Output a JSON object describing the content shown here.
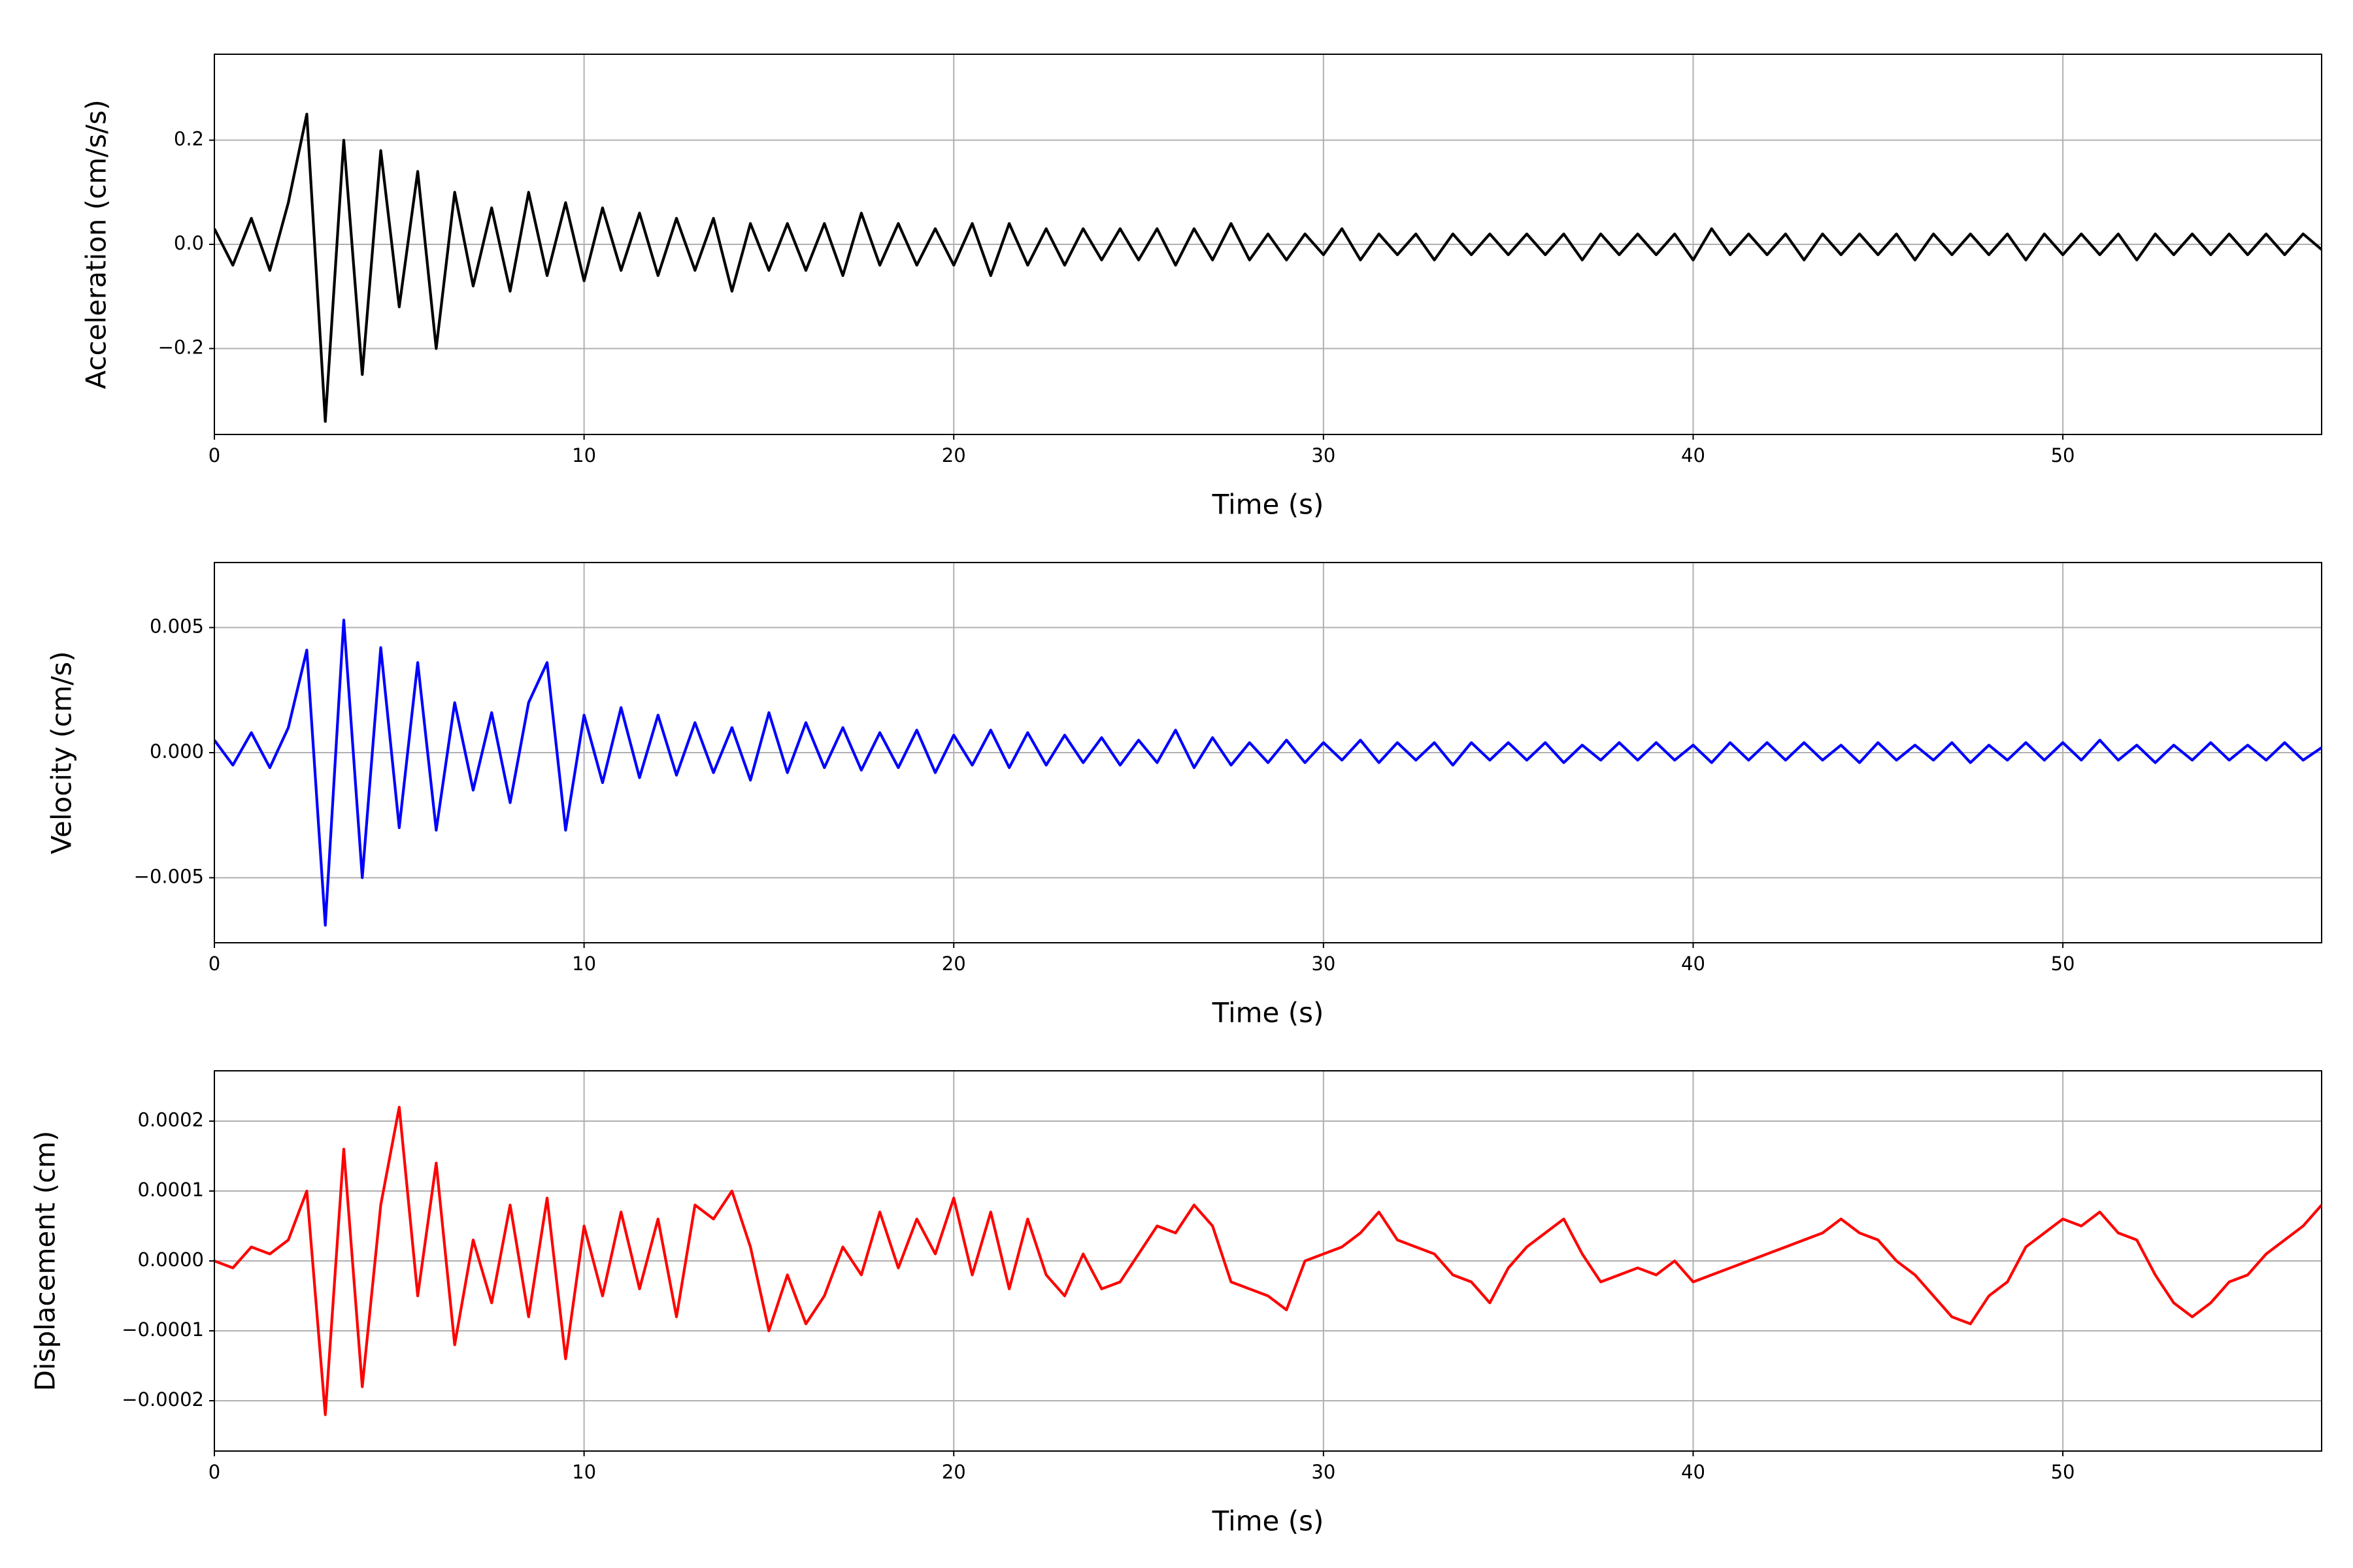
{
  "chart_data": [
    {
      "type": "line",
      "xlabel": "Time (s)",
      "ylabel": "Acceleration (cm/s/s)",
      "color": "#000000",
      "grid": true,
      "xlim": [
        0,
        57
      ],
      "xticks": [
        0,
        10,
        20,
        30,
        40,
        50
      ],
      "ylim": [
        -0.365,
        0.365
      ],
      "yticks": [
        {
          "value": -0.2,
          "label": "−0.2"
        },
        {
          "value": 0,
          "label": "0.0"
        },
        {
          "value": 0.2,
          "label": "0.2"
        }
      ],
      "x": [
        0,
        0.5,
        1,
        1.5,
        2,
        2.5,
        3,
        3.5,
        4,
        4.5,
        5,
        5.5,
        6,
        6.5,
        7,
        7.5,
        8,
        8.5,
        9,
        9.5,
        10,
        10.5,
        11,
        11.5,
        12,
        12.5,
        13,
        13.5,
        14,
        14.5,
        15,
        15.5,
        16,
        16.5,
        17,
        17.5,
        18,
        18.5,
        19,
        19.5,
        20,
        20.5,
        21,
        21.5,
        22,
        22.5,
        23,
        23.5,
        24,
        24.5,
        25,
        25.5,
        26,
        26.5,
        27,
        27.5,
        28,
        28.5,
        29,
        29.5,
        30,
        30.5,
        31,
        31.5,
        32,
        32.5,
        33,
        33.5,
        34,
        34.5,
        35,
        35.5,
        36,
        36.5,
        37,
        37.5,
        38,
        38.5,
        39,
        39.5,
        40,
        40.5,
        41,
        41.5,
        42,
        42.5,
        43,
        43.5,
        44,
        44.5,
        45,
        45.5,
        46,
        46.5,
        47,
        47.5,
        48,
        48.5,
        49,
        49.5,
        50,
        50.5,
        51,
        51.5,
        52,
        52.5,
        53,
        53.5,
        54,
        54.5,
        55,
        55.5,
        56,
        56.5,
        57
      ],
      "values": [
        0.03,
        -0.04,
        0.05,
        -0.05,
        0.08,
        0.25,
        -0.34,
        0.2,
        -0.25,
        0.18,
        -0.12,
        0.14,
        -0.2,
        0.1,
        -0.08,
        0.07,
        -0.09,
        0.1,
        -0.06,
        0.08,
        -0.07,
        0.07,
        -0.05,
        0.06,
        -0.06,
        0.05,
        -0.05,
        0.05,
        -0.09,
        0.04,
        -0.05,
        0.04,
        -0.05,
        0.04,
        -0.06,
        0.06,
        -0.04,
        0.04,
        -0.04,
        0.03,
        -0.04,
        0.04,
        -0.06,
        0.04,
        -0.04,
        0.03,
        -0.04,
        0.03,
        -0.03,
        0.03,
        -0.03,
        0.03,
        -0.04,
        0.03,
        -0.03,
        0.04,
        -0.03,
        0.02,
        -0.03,
        0.02,
        -0.02,
        0.03,
        -0.03,
        0.02,
        -0.02,
        0.02,
        -0.03,
        0.02,
        -0.02,
        0.02,
        -0.02,
        0.02,
        -0.02,
        0.02,
        -0.03,
        0.02,
        -0.02,
        0.02,
        -0.02,
        0.02,
        -0.03,
        0.03,
        -0.02,
        0.02,
        -0.02,
        0.02,
        -0.03,
        0.02,
        -0.02,
        0.02,
        -0.02,
        0.02,
        -0.03,
        0.02,
        -0.02,
        0.02,
        -0.02,
        0.02,
        -0.03,
        0.02,
        -0.02,
        0.02,
        -0.02,
        0.02,
        -0.03,
        0.02,
        -0.02,
        0.02,
        -0.02,
        0.02,
        -0.02,
        0.02,
        -0.02,
        0.02,
        -0.01
      ]
    },
    {
      "type": "line",
      "xlabel": "Time (s)",
      "ylabel": "Velocity (cm/s)",
      "color": "#0000ff",
      "grid": true,
      "xlim": [
        0,
        57
      ],
      "xticks": [
        0,
        10,
        20,
        30,
        40,
        50
      ],
      "ylim": [
        -0.0076,
        0.0076
      ],
      "yticks": [
        {
          "value": -0.005,
          "label": "−0.005"
        },
        {
          "value": 0,
          "label": "0.000"
        },
        0.005
      ],
      "x": [
        0,
        0.5,
        1,
        1.5,
        2,
        2.5,
        3,
        3.5,
        4,
        4.5,
        5,
        5.5,
        6,
        6.5,
        7,
        7.5,
        8,
        8.5,
        9,
        9.5,
        10,
        10.5,
        11,
        11.5,
        12,
        12.5,
        13,
        13.5,
        14,
        14.5,
        15,
        15.5,
        16,
        16.5,
        17,
        17.5,
        18,
        18.5,
        19,
        19.5,
        20,
        20.5,
        21,
        21.5,
        22,
        22.5,
        23,
        23.5,
        24,
        24.5,
        25,
        25.5,
        26,
        26.5,
        27,
        27.5,
        28,
        28.5,
        29,
        29.5,
        30,
        30.5,
        31,
        31.5,
        32,
        32.5,
        33,
        33.5,
        34,
        34.5,
        35,
        35.5,
        36,
        36.5,
        37,
        37.5,
        38,
        38.5,
        39,
        39.5,
        40,
        40.5,
        41,
        41.5,
        42,
        42.5,
        43,
        43.5,
        44,
        44.5,
        45,
        45.5,
        46,
        46.5,
        47,
        47.5,
        48,
        48.5,
        49,
        49.5,
        50,
        50.5,
        51,
        51.5,
        52,
        52.5,
        53,
        53.5,
        54,
        54.5,
        55,
        55.5,
        56,
        56.5,
        57
      ],
      "values": [
        0.0005,
        -0.0005,
        0.0008,
        -0.0006,
        0.001,
        0.0041,
        -0.0069,
        0.0053,
        -0.005,
        0.0042,
        -0.003,
        0.0036,
        -0.0031,
        0.002,
        -0.0015,
        0.0016,
        -0.002,
        0.002,
        0.0036,
        -0.0031,
        0.0015,
        -0.0012,
        0.0018,
        -0.001,
        0.0015,
        -0.0009,
        0.0012,
        -0.0008,
        0.001,
        -0.0011,
        0.0016,
        -0.0008,
        0.0012,
        -0.0006,
        0.001,
        -0.0007,
        0.0008,
        -0.0006,
        0.0009,
        -0.0008,
        0.0007,
        -0.0005,
        0.0009,
        -0.0006,
        0.0008,
        -0.0005,
        0.0007,
        -0.0004,
        0.0006,
        -0.0005,
        0.0005,
        -0.0004,
        0.0009,
        -0.0006,
        0.0006,
        -0.0005,
        0.0004,
        -0.0004,
        0.0005,
        -0.0004,
        0.0004,
        -0.0003,
        0.0005,
        -0.0004,
        0.0004,
        -0.0003,
        0.0004,
        -0.0005,
        0.0004,
        -0.0003,
        0.0004,
        -0.0003,
        0.0004,
        -0.0004,
        0.0003,
        -0.0003,
        0.0004,
        -0.0003,
        0.0004,
        -0.0003,
        0.0003,
        -0.0004,
        0.0004,
        -0.0003,
        0.0004,
        -0.0003,
        0.0004,
        -0.0003,
        0.0003,
        -0.0004,
        0.0004,
        -0.0003,
        0.0003,
        -0.0003,
        0.0004,
        -0.0004,
        0.0003,
        -0.0003,
        0.0004,
        -0.0003,
        0.0004,
        -0.0003,
        0.0005,
        -0.0003,
        0.0003,
        -0.0004,
        0.0003,
        -0.0003,
        0.0004,
        -0.0003,
        0.0003,
        -0.0003,
        0.0004,
        -0.0003,
        0.0002
      ]
    },
    {
      "type": "line",
      "xlabel": "Time (s)",
      "ylabel": "Displacement (cm)",
      "color": "#ff0000",
      "grid": true,
      "xlim": [
        0,
        57
      ],
      "xticks": [
        0,
        10,
        20,
        30,
        40,
        50
      ],
      "ylim": [
        -0.000272,
        0.000272
      ],
      "yticks": [
        {
          "value": -0.0002,
          "label": "−0.0002"
        },
        {
          "value": -0.0001,
          "label": "−0.0001"
        },
        {
          "value": 0,
          "label": "0.0000"
        },
        0.0001,
        0.0002
      ],
      "x": [
        0,
        0.5,
        1,
        1.5,
        2,
        2.5,
        3,
        3.5,
        4,
        4.5,
        5,
        5.5,
        6,
        6.5,
        7,
        7.5,
        8,
        8.5,
        9,
        9.5,
        10,
        10.5,
        11,
        11.5,
        12,
        12.5,
        13,
        13.5,
        14,
        14.5,
        15,
        15.5,
        16,
        16.5,
        17,
        17.5,
        18,
        18.5,
        19,
        19.5,
        20,
        20.5,
        21,
        21.5,
        22,
        22.5,
        23,
        23.5,
        24,
        24.5,
        25,
        25.5,
        26,
        26.5,
        27,
        27.5,
        28,
        28.5,
        29,
        29.5,
        30,
        30.5,
        31,
        31.5,
        32,
        32.5,
        33,
        33.5,
        34,
        34.5,
        35,
        35.5,
        36,
        36.5,
        37,
        37.5,
        38,
        38.5,
        39,
        39.5,
        40,
        40.5,
        41,
        41.5,
        42,
        42.5,
        43,
        43.5,
        44,
        44.5,
        45,
        45.5,
        46,
        46.5,
        47,
        47.5,
        48,
        48.5,
        49,
        49.5,
        50,
        50.5,
        51,
        51.5,
        52,
        52.5,
        53,
        53.5,
        54,
        54.5,
        55,
        55.5,
        56,
        56.5,
        57
      ],
      "values": [
        0,
        -1e-05,
        2e-05,
        1e-05,
        3e-05,
        0.0001,
        -0.00022,
        0.00016,
        -0.00018,
        8e-05,
        0.00022,
        -5e-05,
        0.00014,
        -0.00012,
        3e-05,
        -6e-05,
        8e-05,
        -8e-05,
        9e-05,
        -0.00014,
        5e-05,
        -5e-05,
        7e-05,
        -4e-05,
        6e-05,
        -8e-05,
        8e-05,
        6e-05,
        0.0001,
        2e-05,
        -0.0001,
        -2e-05,
        -9e-05,
        -5e-05,
        2e-05,
        -2e-05,
        7e-05,
        -1e-05,
        6e-05,
        1e-05,
        9e-05,
        -2e-05,
        7e-05,
        -4e-05,
        6e-05,
        -2e-05,
        -5e-05,
        1e-05,
        -4e-05,
        -3e-05,
        1e-05,
        5e-05,
        4e-05,
        8e-05,
        5e-05,
        -3e-05,
        -4e-05,
        -5e-05,
        -7e-05,
        0,
        1e-05,
        2e-05,
        4e-05,
        7e-05,
        3e-05,
        2e-05,
        1e-05,
        -2e-05,
        -3e-05,
        -6e-05,
        -1e-05,
        2e-05,
        4e-05,
        6e-05,
        1e-05,
        -3e-05,
        -2e-05,
        -1e-05,
        -2e-05,
        0,
        -3e-05,
        -2e-05,
        -1e-05,
        0,
        1e-05,
        2e-05,
        3e-05,
        4e-05,
        6e-05,
        4e-05,
        3e-05,
        0,
        -2e-05,
        -5e-05,
        -8e-05,
        -9e-05,
        -5e-05,
        -3e-05,
        2e-05,
        4e-05,
        6e-05,
        5e-05,
        7e-05,
        4e-05,
        3e-05,
        -2e-05,
        -6e-05,
        -8e-05,
        -6e-05,
        -3e-05,
        -2e-05,
        1e-05,
        3e-05,
        5e-05,
        8e-05
      ]
    }
  ]
}
